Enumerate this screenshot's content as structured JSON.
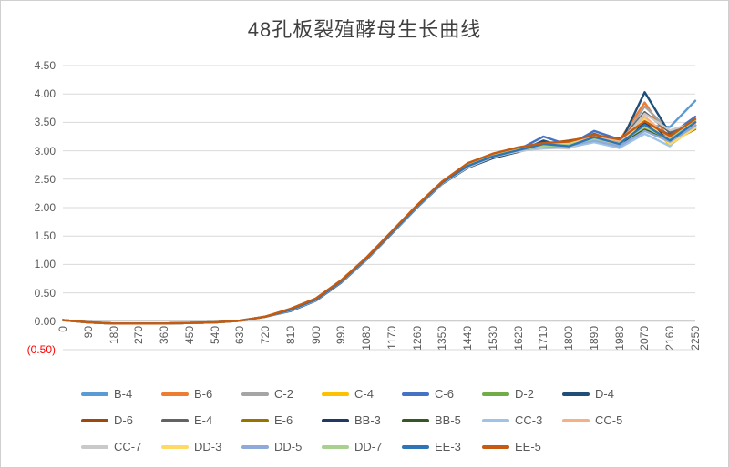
{
  "title": "48孔板裂殖酵母生长曲线",
  "colors": {
    "background": "#FFFFFF",
    "axis_text": "#595959",
    "negative_label": "#FF0000",
    "gridline": "#D9D9D9",
    "zero_axis": "#BFBFBF"
  },
  "chart_data": {
    "type": "line",
    "title": "48孔板裂殖酵母生长曲线",
    "xlabel": "",
    "ylabel": "",
    "grid": true,
    "legend_position": "bottom",
    "ylim": [
      -0.5,
      4.5
    ],
    "xlim": [
      0,
      2250
    ],
    "y_tick_labels": [
      "4.50",
      "4.00",
      "3.50",
      "3.00",
      "2.50",
      "2.00",
      "1.50",
      "1.00",
      "0.50",
      "0.00",
      "(0.50)"
    ],
    "y_tick_values": [
      4.5,
      4.0,
      3.5,
      3.0,
      2.5,
      2.0,
      1.5,
      1.0,
      0.5,
      0.0,
      -0.5
    ],
    "x": [
      0,
      90,
      180,
      270,
      360,
      450,
      540,
      630,
      720,
      810,
      900,
      990,
      1080,
      1170,
      1260,
      1350,
      1440,
      1530,
      1620,
      1710,
      1800,
      1890,
      1980,
      2070,
      2160,
      2250
    ],
    "x_tick_labels": [
      "0",
      "90",
      "180",
      "270",
      "360",
      "450",
      "540",
      "630",
      "720",
      "810",
      "900",
      "990",
      "1080",
      "1170",
      "1260",
      "1350",
      "1440",
      "1530",
      "1620",
      "1710",
      "1800",
      "1890",
      "1980",
      "2070",
      "2160",
      "2250"
    ],
    "series": [
      {
        "name": "B-4",
        "color": "#5B9BD5",
        "values": [
          0.02,
          -0.02,
          -0.04,
          -0.04,
          -0.04,
          -0.03,
          -0.02,
          0.01,
          0.08,
          0.2,
          0.38,
          0.7,
          1.1,
          1.56,
          2.02,
          2.44,
          2.74,
          2.9,
          3.0,
          3.05,
          3.12,
          3.18,
          3.05,
          3.45,
          3.42,
          3.88
        ]
      },
      {
        "name": "B-6",
        "color": "#ED7D31",
        "values": [
          0.02,
          -0.02,
          -0.04,
          -0.04,
          -0.04,
          -0.03,
          -0.02,
          0.01,
          0.08,
          0.21,
          0.39,
          0.71,
          1.11,
          1.57,
          2.03,
          2.45,
          2.76,
          2.93,
          3.04,
          3.1,
          3.08,
          3.22,
          3.18,
          3.85,
          3.18,
          3.5
        ]
      },
      {
        "name": "C-2",
        "color": "#A5A5A5",
        "values": [
          0.02,
          -0.02,
          -0.04,
          -0.04,
          -0.04,
          -0.03,
          -0.02,
          0.01,
          0.08,
          0.19,
          0.37,
          0.69,
          1.09,
          1.55,
          2.01,
          2.43,
          2.7,
          2.88,
          2.98,
          3.08,
          3.05,
          3.28,
          3.1,
          3.78,
          3.35,
          3.45
        ]
      },
      {
        "name": "C-4",
        "color": "#FFC000",
        "values": [
          0.02,
          -0.02,
          -0.04,
          -0.04,
          -0.04,
          -0.03,
          -0.02,
          0.01,
          0.08,
          0.22,
          0.4,
          0.72,
          1.12,
          1.58,
          2.04,
          2.46,
          2.78,
          2.94,
          3.05,
          3.12,
          3.15,
          3.3,
          3.12,
          3.55,
          3.1,
          3.42
        ]
      },
      {
        "name": "C-6",
        "color": "#4472C4",
        "values": [
          0.02,
          -0.02,
          -0.04,
          -0.04,
          -0.04,
          -0.03,
          -0.02,
          0.01,
          0.08,
          0.2,
          0.38,
          0.7,
          1.1,
          1.56,
          2.02,
          2.44,
          2.73,
          2.9,
          3.02,
          3.25,
          3.1,
          3.35,
          3.2,
          3.5,
          3.28,
          3.6
        ]
      },
      {
        "name": "D-2",
        "color": "#70AD47",
        "values": [
          0.02,
          -0.02,
          -0.04,
          -0.04,
          -0.04,
          -0.03,
          -0.02,
          0.01,
          0.08,
          0.21,
          0.39,
          0.71,
          1.11,
          1.57,
          2.03,
          2.45,
          2.75,
          2.92,
          3.03,
          3.08,
          3.12,
          3.2,
          3.15,
          3.38,
          3.22,
          3.52
        ]
      },
      {
        "name": "D-4",
        "color": "#1F4E79",
        "values": [
          0.02,
          -0.02,
          -0.04,
          -0.04,
          -0.04,
          -0.03,
          -0.02,
          0.01,
          0.08,
          0.18,
          0.36,
          0.68,
          1.08,
          1.54,
          2.0,
          2.42,
          2.7,
          2.87,
          2.98,
          3.18,
          3.05,
          3.25,
          3.1,
          4.03,
          3.3,
          3.45
        ]
      },
      {
        "name": "D-6",
        "color": "#9E480E",
        "values": [
          0.02,
          -0.02,
          -0.04,
          -0.04,
          -0.04,
          -0.03,
          -0.02,
          0.01,
          0.08,
          0.22,
          0.4,
          0.72,
          1.12,
          1.58,
          2.04,
          2.46,
          2.77,
          2.94,
          3.06,
          3.12,
          3.18,
          3.25,
          3.22,
          3.45,
          3.28,
          3.5
        ]
      },
      {
        "name": "E-4",
        "color": "#636363",
        "values": [
          0.02,
          -0.02,
          -0.04,
          -0.04,
          -0.04,
          -0.03,
          -0.02,
          0.01,
          0.08,
          0.2,
          0.38,
          0.7,
          1.1,
          1.56,
          2.02,
          2.44,
          2.72,
          2.9,
          3.0,
          3.1,
          3.08,
          3.3,
          3.15,
          3.68,
          3.32,
          3.4
        ]
      },
      {
        "name": "E-6",
        "color": "#997300",
        "values": [
          0.02,
          -0.02,
          -0.04,
          -0.04,
          -0.04,
          -0.03,
          -0.02,
          0.01,
          0.08,
          0.21,
          0.39,
          0.71,
          1.11,
          1.57,
          2.03,
          2.45,
          2.75,
          2.92,
          3.02,
          3.06,
          3.1,
          3.18,
          3.12,
          3.4,
          3.15,
          3.38
        ]
      },
      {
        "name": "BB-3",
        "color": "#1F3864",
        "values": [
          0.02,
          -0.02,
          -0.04,
          -0.04,
          -0.04,
          -0.03,
          -0.02,
          0.01,
          0.08,
          0.19,
          0.37,
          0.69,
          1.09,
          1.55,
          2.01,
          2.43,
          2.71,
          2.88,
          2.99,
          3.15,
          3.06,
          3.22,
          3.08,
          3.5,
          3.2,
          3.45
        ]
      },
      {
        "name": "BB-5",
        "color": "#375623",
        "values": [
          0.02,
          -0.02,
          -0.04,
          -0.04,
          -0.04,
          -0.03,
          -0.02,
          0.01,
          0.08,
          0.21,
          0.39,
          0.71,
          1.11,
          1.57,
          2.03,
          2.45,
          2.74,
          2.91,
          3.02,
          3.08,
          3.12,
          3.2,
          3.16,
          3.36,
          3.24,
          3.42
        ]
      },
      {
        "name": "CC-3",
        "color": "#9DC3E6",
        "values": [
          0.02,
          -0.02,
          -0.04,
          -0.04,
          -0.04,
          -0.03,
          -0.02,
          0.01,
          0.08,
          0.2,
          0.38,
          0.7,
          1.1,
          1.56,
          2.02,
          2.44,
          2.72,
          2.89,
          3.0,
          3.04,
          3.06,
          3.15,
          3.05,
          3.3,
          3.08,
          3.55
        ]
      },
      {
        "name": "CC-5",
        "color": "#F4B183",
        "values": [
          0.02,
          -0.02,
          -0.04,
          -0.04,
          -0.04,
          -0.03,
          -0.02,
          0.01,
          0.08,
          0.22,
          0.4,
          0.72,
          1.12,
          1.58,
          2.04,
          2.46,
          2.77,
          2.93,
          3.05,
          3.1,
          3.14,
          3.24,
          3.18,
          3.6,
          3.22,
          3.46
        ]
      },
      {
        "name": "CC-7",
        "color": "#C9C9C9",
        "values": [
          0.02,
          -0.02,
          -0.04,
          -0.04,
          -0.04,
          -0.03,
          -0.02,
          0.01,
          0.08,
          0.19,
          0.37,
          0.69,
          1.09,
          1.55,
          2.01,
          2.43,
          2.71,
          2.89,
          2.99,
          3.06,
          3.04,
          3.26,
          3.12,
          3.65,
          3.36,
          3.5
        ]
      },
      {
        "name": "DD-3",
        "color": "#FFD966",
        "values": [
          0.02,
          -0.02,
          -0.04,
          -0.04,
          -0.04,
          -0.03,
          -0.02,
          0.01,
          0.08,
          0.21,
          0.39,
          0.71,
          1.11,
          1.57,
          2.03,
          2.45,
          2.75,
          2.92,
          3.03,
          3.09,
          3.12,
          3.22,
          3.1,
          3.56,
          3.12,
          3.4
        ]
      },
      {
        "name": "DD-5",
        "color": "#8EAADB",
        "values": [
          0.02,
          -0.02,
          -0.04,
          -0.04,
          -0.04,
          -0.03,
          -0.02,
          0.01,
          0.08,
          0.2,
          0.38,
          0.7,
          1.1,
          1.56,
          2.02,
          2.44,
          2.73,
          2.9,
          3.01,
          3.07,
          3.09,
          3.18,
          3.08,
          3.35,
          3.16,
          3.44
        ]
      },
      {
        "name": "DD-7",
        "color": "#A9D18E",
        "values": [
          0.02,
          -0.02,
          -0.04,
          -0.04,
          -0.04,
          -0.03,
          -0.02,
          0.01,
          0.08,
          0.21,
          0.39,
          0.71,
          1.11,
          1.57,
          2.03,
          2.45,
          2.74,
          2.91,
          3.02,
          3.08,
          3.11,
          3.21,
          3.14,
          3.42,
          3.2,
          3.54
        ]
      },
      {
        "name": "EE-3",
        "color": "#2E75B6",
        "values": [
          0.02,
          -0.02,
          -0.04,
          -0.04,
          -0.04,
          -0.03,
          -0.02,
          0.01,
          0.08,
          0.2,
          0.38,
          0.7,
          1.1,
          1.56,
          2.02,
          2.44,
          2.73,
          2.9,
          3.01,
          3.12,
          3.08,
          3.24,
          3.12,
          3.46,
          3.18,
          3.5
        ]
      },
      {
        "name": "EE-5",
        "color": "#C55A11",
        "values": [
          0.02,
          -0.02,
          -0.04,
          -0.04,
          -0.04,
          -0.03,
          -0.02,
          0.01,
          0.08,
          0.22,
          0.4,
          0.72,
          1.12,
          1.58,
          2.04,
          2.46,
          2.78,
          2.95,
          3.06,
          3.14,
          3.16,
          3.28,
          3.2,
          3.52,
          3.26,
          3.56
        ]
      }
    ]
  }
}
